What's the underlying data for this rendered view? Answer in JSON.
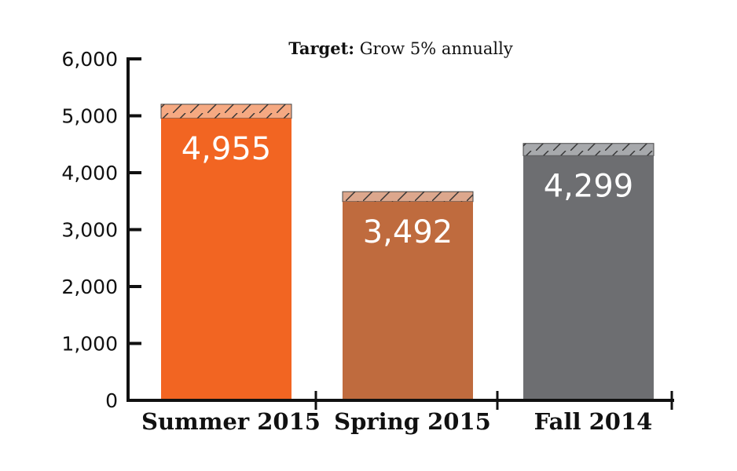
{
  "chart_data": {
    "type": "bar",
    "title_bold": "Target:",
    "title_rest": " Grow 5% annually",
    "categories": [
      "Summer 2015",
      "Spring 2015",
      "Fall 2014"
    ],
    "values": [
      4955,
      3492,
      4299
    ],
    "value_labels": [
      "4,955",
      "3,492",
      "4,299"
    ],
    "target_values": [
      5203,
      3667,
      4514
    ],
    "colors": [
      "#f26522",
      "#bf6b3e",
      "#6d6e71"
    ],
    "target_colors": [
      "#f5a982",
      "#dca78d",
      "#a7a9ac"
    ],
    "yticks": [
      0,
      1000,
      2000,
      3000,
      4000,
      5000,
      6000
    ],
    "ytick_labels": [
      "0",
      "1,000",
      "2,000",
      "3,000",
      "4,000",
      "5,000",
      "6,000"
    ],
    "ylim": [
      0,
      6000
    ],
    "xlabel": "",
    "ylabel": "",
    "grid": false
  }
}
